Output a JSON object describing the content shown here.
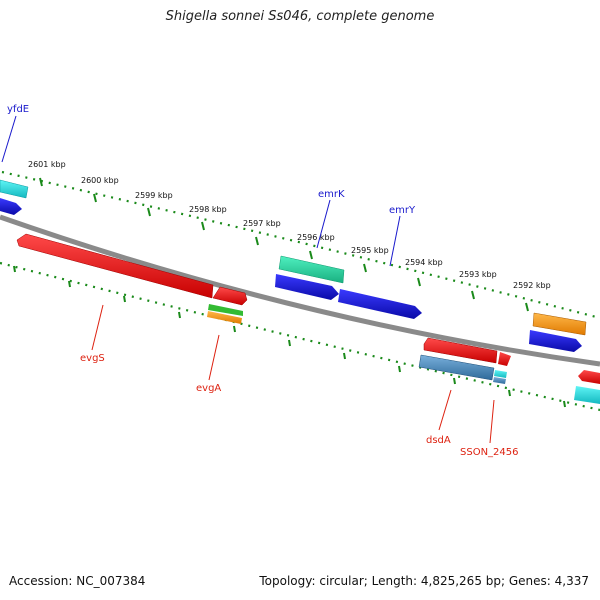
{
  "header": {
    "title": "Shigella sonnei Ss046, complete genome"
  },
  "footer": {
    "accession": "Accession: NC_007384",
    "summary": "Topology: circular; Length: 4,825,265 bp; Genes: 4,337"
  },
  "scale": {
    "ticks": [
      "2601 kbp",
      "2600 kbp",
      "2599 kbp",
      "2598 kbp",
      "2597 kbp",
      "2596 kbp",
      "2595 kbp",
      "2594 kbp",
      "2593 kbp",
      "2592 kbp"
    ]
  },
  "genes": {
    "top_labels": [
      "yfdE",
      "emrK",
      "emrY"
    ],
    "bottom_labels": [
      "evgS",
      "evgA",
      "dsdA",
      "SSON_2456"
    ]
  },
  "colors": {
    "backbone": "#808080",
    "tick": "#1a8a1a",
    "red": "#ee1111",
    "blue": "#1111dd",
    "teal": "#22d4a0",
    "cyan": "#22dede",
    "orange": "#f59a1a",
    "steel": "#4a86b8",
    "green": "#33bb33"
  }
}
